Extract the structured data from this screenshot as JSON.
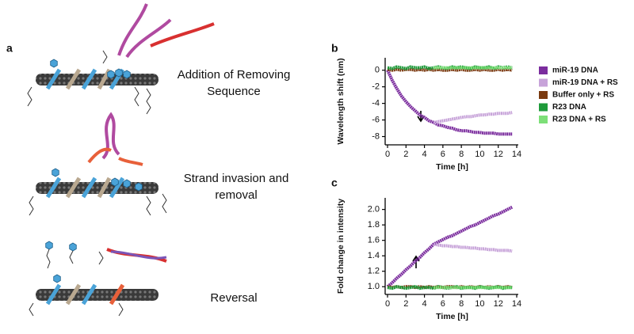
{
  "panel_labels": [
    "a",
    "b",
    "c"
  ],
  "schematic": {
    "steps": [
      "Addition of Removing",
      "Sequence",
      "Strand invasion and",
      "removal",
      "Reversal"
    ]
  },
  "chart_data": [
    {
      "type": "line",
      "ylabel": "Wavelength shift (nm)",
      "xlabel": "Time [h]",
      "x": [
        0,
        0.5,
        1,
        1.5,
        2,
        2.5,
        3,
        3.5,
        4,
        4.5,
        5,
        5.5,
        6,
        6.5,
        7,
        7.5,
        8,
        8.5,
        9,
        9.5,
        10,
        10.5,
        11,
        11.5,
        12,
        12.5,
        13,
        13.5
      ],
      "xlim": [
        0,
        14
      ],
      "xticks": [
        0,
        2,
        4,
        6,
        8,
        10,
        12,
        14
      ],
      "ylim": [
        -9,
        1.5
      ],
      "yticks": [
        0,
        -2,
        -4,
        -6,
        -8
      ],
      "series": [
        {
          "name": "miR-19 DNA",
          "color": "#7b2d9e",
          "values": [
            0,
            -1.2,
            -2.2,
            -3.1,
            -3.8,
            -4.4,
            -4.9,
            -5.4,
            -5.7,
            -6.1,
            -6.3,
            -6.6,
            -6.7,
            -6.9,
            -7.0,
            -7.2,
            -7.3,
            -7.3,
            -7.4,
            -7.5,
            -7.5,
            -7.6,
            -7.6,
            -7.6,
            -7.7,
            -7.7,
            -7.7,
            -7.7
          ]
        },
        {
          "name": "miR-19 DNA + RS",
          "color": "#c7a3d9",
          "values": [
            null,
            null,
            null,
            null,
            null,
            null,
            null,
            null,
            null,
            null,
            -6.3,
            -6.2,
            -6.1,
            -6.0,
            -5.9,
            -5.8,
            -5.7,
            -5.6,
            -5.6,
            -5.5,
            -5.4,
            -5.4,
            -5.3,
            -5.3,
            -5.2,
            -5.2,
            -5.2,
            -5.1
          ]
        },
        {
          "name": "Buffer only + RS",
          "color": "#7a3a10",
          "values": [
            0.1,
            0.0,
            0.1,
            0.0,
            0.1,
            0.1,
            0.0,
            0.1,
            0.0,
            0.1,
            0.0,
            0.1,
            0.0,
            0.0,
            0.1,
            0.0,
            0.1,
            0.0,
            0.0,
            0.1,
            0.0,
            0.1,
            0.0,
            0.0,
            0.1,
            0.0,
            0.1,
            0.0
          ]
        },
        {
          "name": "R23 DNA",
          "color": "#1e9a3a",
          "values": [
            0.3,
            0.2,
            0.4,
            0.3,
            0.2,
            0.4,
            0.3,
            0.3,
            0.4,
            0.2,
            0.3,
            0.4,
            0.3,
            0.2,
            0.4,
            0.3,
            0.4,
            0.3,
            0.2,
            0.4,
            0.3,
            0.3,
            0.4,
            0.2,
            0.4,
            0.3,
            0.4,
            0.3
          ]
        },
        {
          "name": "R23 DNA + RS",
          "color": "#7ddf78",
          "values": [
            null,
            null,
            null,
            null,
            null,
            null,
            null,
            null,
            null,
            null,
            0.3,
            0.3,
            0.3,
            0.3,
            0.3,
            0.3,
            0.3,
            0.3,
            0.3,
            0.3,
            0.3,
            0.3,
            0.3,
            0.3,
            0.3,
            0.3,
            0.3,
            0.3
          ]
        }
      ]
    },
    {
      "type": "line",
      "ylabel": "Fold change in intensity",
      "xlabel": "Time [h]",
      "x": [
        0,
        0.5,
        1,
        1.5,
        2,
        2.5,
        3,
        3.5,
        4,
        4.5,
        5,
        5.5,
        6,
        6.5,
        7,
        7.5,
        8,
        8.5,
        9,
        9.5,
        10,
        10.5,
        11,
        11.5,
        12,
        12.5,
        13,
        13.5
      ],
      "xlim": [
        0,
        14
      ],
      "xticks": [
        0,
        2,
        4,
        6,
        8,
        10,
        12,
        14
      ],
      "ylim": [
        0.9,
        2.15
      ],
      "yticks": [
        {
          "value": 1,
          "label": "1.0"
        },
        1.2,
        1.4,
        1.6,
        1.8,
        {
          "value": 2,
          "label": "2.0"
        }
      ],
      "series": [
        {
          "color": "#7b2d9e",
          "values": [
            1.0,
            1.05,
            1.11,
            1.16,
            1.22,
            1.27,
            1.33,
            1.38,
            1.44,
            1.49,
            1.55,
            1.58,
            1.61,
            1.64,
            1.66,
            1.69,
            1.72,
            1.75,
            1.78,
            1.8,
            1.83,
            1.86,
            1.89,
            1.92,
            1.94,
            1.97,
            2.0,
            2.03
          ]
        },
        {
          "color": "#c7a3d9",
          "values": [
            null,
            null,
            null,
            null,
            null,
            null,
            null,
            null,
            null,
            null,
            1.55,
            1.54,
            1.53,
            1.53,
            1.52,
            1.52,
            1.51,
            1.51,
            1.5,
            1.5,
            1.49,
            1.49,
            1.48,
            1.48,
            1.47,
            1.47,
            1.47,
            1.46
          ]
        },
        {
          "color": "#7a3a10",
          "values": [
            1.0,
            0.99,
            1.0,
            0.99,
            1.0,
            1.0,
            0.99,
            1.0,
            0.99,
            1.0,
            0.99,
            1.0,
            0.99,
            1.0,
            1.0,
            0.99,
            1.0,
            0.99,
            1.0,
            0.99,
            1.0,
            0.99,
            1.0,
            0.99,
            1.0,
            0.99,
            1.0,
            0.99
          ]
        },
        {
          "color": "#1e9a3a",
          "values": [
            0.99,
            0.98,
            1.0,
            0.99,
            0.98,
            0.99,
            1.0,
            0.98,
            0.99,
            0.99,
            0.98,
            1.0,
            0.99,
            0.98,
            0.99,
            1.0,
            0.98,
            0.99,
            0.99,
            0.98,
            1.0,
            0.99,
            0.98,
            0.99,
            1.0,
            0.98,
            0.99,
            0.99
          ]
        },
        {
          "color": "#7ddf78",
          "values": [
            null,
            null,
            null,
            null,
            null,
            null,
            null,
            null,
            null,
            null,
            0.99,
            0.99,
            0.99,
            0.99,
            0.99,
            0.99,
            0.99,
            0.99,
            0.99,
            0.99,
            0.99,
            0.99,
            0.99,
            0.99,
            0.99,
            0.99,
            0.99,
            0.99
          ]
        }
      ]
    }
  ]
}
